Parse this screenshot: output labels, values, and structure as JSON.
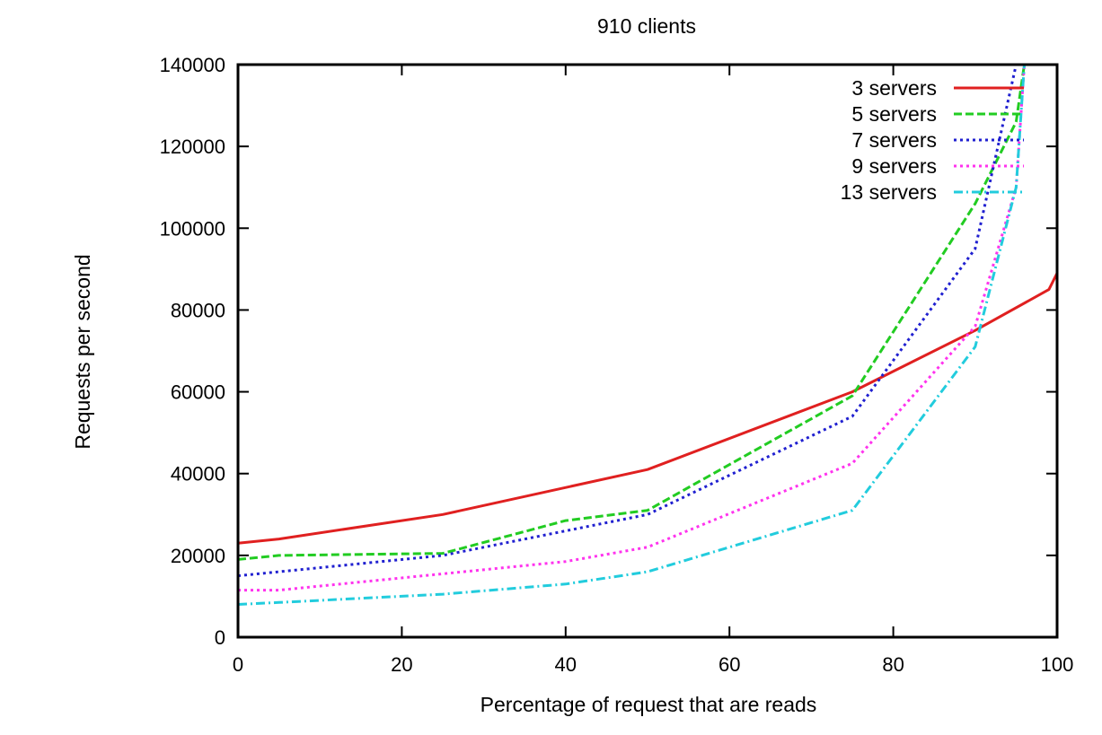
{
  "chart_data": {
    "type": "line",
    "title": "910 clients",
    "xlabel": "Percentage of request that are  reads",
    "ylabel": "Requests per second",
    "xlim": [
      0,
      100
    ],
    "ylim": [
      0,
      140000
    ],
    "xticks": [
      0,
      20,
      40,
      60,
      80,
      100
    ],
    "yticks": [
      0,
      20000,
      40000,
      60000,
      80000,
      100000,
      120000,
      140000
    ],
    "grid": false,
    "legend_position": "top-right",
    "series": [
      {
        "name": "3 servers",
        "color": "#e02020",
        "dash": "solid",
        "points": [
          [
            0,
            23000
          ],
          [
            5,
            24000
          ],
          [
            25,
            30000
          ],
          [
            50,
            41000
          ],
          [
            75,
            60000
          ],
          [
            90,
            75000
          ],
          [
            99,
            85000
          ],
          [
            100,
            89000
          ]
        ]
      },
      {
        "name": "5 servers",
        "color": "#22cc22",
        "dash": "dashed",
        "points": [
          [
            0,
            19000
          ],
          [
            5,
            20000
          ],
          [
            25,
            20500
          ],
          [
            40,
            28500
          ],
          [
            50,
            31000
          ],
          [
            75,
            59000
          ],
          [
            90,
            106000
          ],
          [
            95,
            126000
          ],
          [
            96,
            140000
          ]
        ]
      },
      {
        "name": "7 servers",
        "color": "#2020d0",
        "dash": "dotted",
        "points": [
          [
            0,
            15000
          ],
          [
            5,
            16000
          ],
          [
            25,
            20000
          ],
          [
            50,
            30000
          ],
          [
            75,
            54000
          ],
          [
            90,
            95000
          ],
          [
            95,
            140000
          ]
        ]
      },
      {
        "name": "9 servers",
        "color": "#ff33ee",
        "dash": "dotted",
        "points": [
          [
            0,
            11500
          ],
          [
            5,
            11500
          ],
          [
            25,
            15500
          ],
          [
            40,
            18500
          ],
          [
            50,
            22000
          ],
          [
            75,
            42500
          ],
          [
            90,
            76000
          ],
          [
            95,
            110000
          ],
          [
            96,
            140000
          ]
        ]
      },
      {
        "name": "13 servers",
        "color": "#22ccdd",
        "dash": "dashdot",
        "points": [
          [
            0,
            8000
          ],
          [
            5,
            8500
          ],
          [
            25,
            10500
          ],
          [
            40,
            13000
          ],
          [
            50,
            16000
          ],
          [
            75,
            31000
          ],
          [
            90,
            71000
          ],
          [
            95,
            110000
          ],
          [
            96,
            140000
          ]
        ]
      }
    ]
  }
}
